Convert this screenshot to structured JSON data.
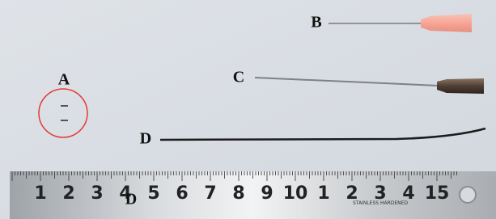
{
  "labels": {
    "a": "A",
    "b": "B",
    "c": "C",
    "d": "D",
    "d_ruler": "D"
  },
  "ruler": {
    "numbers": [
      "1",
      "2",
      "3",
      "4",
      "5",
      "6",
      "7",
      "8",
      "9",
      "10",
      "1",
      "2",
      "3",
      "4",
      "15"
    ],
    "imprint": "STAINLESS HARDENED"
  }
}
